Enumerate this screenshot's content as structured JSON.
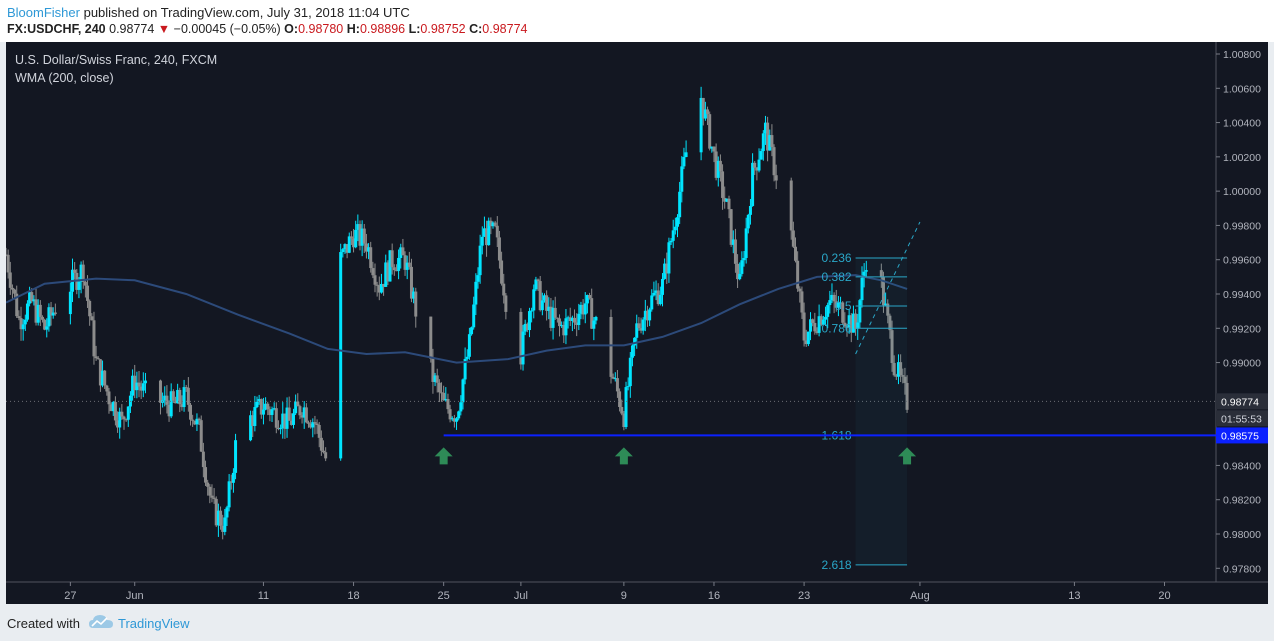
{
  "header": {
    "author": "BloomFisher",
    "published_text": "published on TradingView.com, July 31, 2018 11:04 UTC",
    "symbol": "FX:USDCHF, 240",
    "last": "0.98774",
    "change_arrow": "▼",
    "change": "−0.00045 (−0.05%)",
    "o_label": "O:",
    "o_value": "0.98780",
    "h_label": "H:",
    "h_value": "0.98896",
    "l_label": "L:",
    "l_value": "0.98752",
    "c_label": "C:",
    "c_value": "0.98774"
  },
  "legend": {
    "title": "U.S. Dollar/Swiss Franc, 240, FXCM",
    "indicator": "WMA (200, close)"
  },
  "footer": {
    "created_with": "Created with",
    "brand": "TradingView",
    "logo_icon": "tradingview-cloud-icon"
  },
  "colors": {
    "background": "#131722",
    "up_candle": "#00e5ff",
    "down_candle": "#8c8c8c",
    "wma": "#2c4a7a",
    "support_line": "#0b21ff",
    "fib": "#2aa7c8",
    "arrow": "#2e8b57"
  },
  "chart_data": {
    "type": "candlestick",
    "title": "U.S. Dollar/Swiss Franc, 240, FXCM",
    "ylim": [
      0.9772,
      1.0087
    ],
    "y_ticks": [
      "1.00800",
      "1.00600",
      "1.00400",
      "1.00200",
      "1.00000",
      "0.99800",
      "0.99600",
      "0.99400",
      "0.99200",
      "0.99000",
      "0.98400",
      "0.98200",
      "0.98000",
      "0.97800"
    ],
    "y_tick_values": [
      1.008,
      1.006,
      1.004,
      1.002,
      1.0,
      0.998,
      0.996,
      0.994,
      0.992,
      0.99,
      0.984,
      0.982,
      0.98,
      0.978
    ],
    "x_ticks": [
      "27",
      "Jun",
      "11",
      "18",
      "25",
      "Jul",
      "9",
      "16",
      "23",
      "Aug",
      "13",
      "20"
    ],
    "x_tick_dates": [
      "2018-05-27",
      "2018-06-01",
      "2018-06-11",
      "2018-06-18",
      "2018-06-25",
      "2018-07-01",
      "2018-07-09",
      "2018-07-16",
      "2018-07-23",
      "2018-08-01",
      "2018-08-13",
      "2018-08-20"
    ],
    "xlim": [
      "2018-05-22",
      "2018-08-24"
    ],
    "last_price": {
      "label": "0.98774",
      "value": 0.98774
    },
    "countdown": {
      "label": "01:55:53"
    },
    "support_level": {
      "label": "0.98575",
      "value": 0.98575,
      "start": "2018-06-25"
    },
    "fibonacci": {
      "start": "2018-07-27",
      "end": "2018-07-31",
      "levels": [
        {
          "label": "0.236",
          "value": 0.9961
        },
        {
          "label": "0.382",
          "value": 0.995
        },
        {
          "label": "0.5",
          "value": 0.9933
        },
        {
          "label": "0.786",
          "value": 0.992
        },
        {
          "label": "1.618",
          "value": 0.98575
        },
        {
          "label": "2.618",
          "value": 0.9782
        }
      ]
    },
    "arrows": [
      "2018-06-25",
      "2018-07-09",
      "2018-07-31"
    ],
    "wma_line": [
      [
        "2018-05-22",
        0.9935
      ],
      [
        "2018-05-25",
        0.9946
      ],
      [
        "2018-05-29",
        0.9949
      ],
      [
        "2018-06-01",
        0.9948
      ],
      [
        "2018-06-05",
        0.994
      ],
      [
        "2018-06-09",
        0.9928
      ],
      [
        "2018-06-13",
        0.9917
      ],
      [
        "2018-06-16",
        0.9908
      ],
      [
        "2018-06-19",
        0.9905
      ],
      [
        "2018-06-22",
        0.9906
      ],
      [
        "2018-06-26",
        0.99
      ],
      [
        "2018-06-30",
        0.9902
      ],
      [
        "2018-07-03",
        0.9907
      ],
      [
        "2018-07-06",
        0.991
      ],
      [
        "2018-07-09",
        0.991
      ],
      [
        "2018-07-12",
        0.9915
      ],
      [
        "2018-07-15",
        0.9923
      ],
      [
        "2018-07-18",
        0.9934
      ],
      [
        "2018-07-21",
        0.9943
      ],
      [
        "2018-07-24",
        0.995
      ],
      [
        "2018-07-27",
        0.9951
      ],
      [
        "2018-07-29",
        0.9948
      ],
      [
        "2018-07-31",
        0.9943
      ]
    ],
    "price_path": [
      [
        "2018-05-22",
        0.9963
      ],
      [
        "2018-05-23",
        0.9925
      ],
      [
        "2018-05-24",
        0.9935
      ],
      [
        "2018-05-25",
        0.992
      ],
      [
        "2018-05-26",
        0.9935
      ],
      [
        "2018-05-28",
        0.9955
      ],
      [
        "2018-05-29",
        0.99
      ],
      [
        "2018-05-30",
        0.988
      ],
      [
        "2018-05-31",
        0.9865
      ],
      [
        "2018-06-01",
        0.989
      ],
      [
        "2018-06-02",
        0.988
      ],
      [
        "2018-06-04",
        0.9875
      ],
      [
        "2018-06-05",
        0.988
      ],
      [
        "2018-06-06",
        0.986
      ],
      [
        "2018-06-07",
        0.9815
      ],
      [
        "2018-06-08",
        0.9805
      ],
      [
        "2018-06-09",
        0.986
      ],
      [
        "2018-06-11",
        0.9875
      ],
      [
        "2018-06-12",
        0.987
      ],
      [
        "2018-06-13",
        0.9865
      ],
      [
        "2018-06-14",
        0.9875
      ],
      [
        "2018-06-15",
        0.9865
      ],
      [
        "2018-06-16",
        0.984
      ],
      [
        "2018-06-17",
        0.996
      ],
      [
        "2018-06-18",
        0.9975
      ],
      [
        "2018-06-19",
        0.997
      ],
      [
        "2018-06-20",
        0.9945
      ],
      [
        "2018-06-21",
        0.996
      ],
      [
        "2018-06-22",
        0.996
      ],
      [
        "2018-06-23",
        0.9925
      ],
      [
        "2018-06-24",
        0.9895
      ],
      [
        "2018-06-25",
        0.9875
      ],
      [
        "2018-06-26",
        0.987
      ],
      [
        "2018-06-27",
        0.991
      ],
      [
        "2018-06-28",
        0.9975
      ],
      [
        "2018-06-29",
        0.9975
      ],
      [
        "2018-06-30",
        0.993
      ],
      [
        "2018-07-01",
        0.9905
      ],
      [
        "2018-07-02",
        0.9945
      ],
      [
        "2018-07-03",
        0.993
      ],
      [
        "2018-07-04",
        0.992
      ],
      [
        "2018-07-05",
        0.9925
      ],
      [
        "2018-07-06",
        0.9935
      ],
      [
        "2018-07-07",
        0.992
      ],
      [
        "2018-07-08",
        0.9895
      ],
      [
        "2018-07-09",
        0.987
      ],
      [
        "2018-07-10",
        0.992
      ],
      [
        "2018-07-11",
        0.9935
      ],
      [
        "2018-07-12",
        0.9945
      ],
      [
        "2018-07-13",
        0.9985
      ],
      [
        "2018-07-14",
        1.003
      ],
      [
        "2018-07-15",
        1.0055
      ],
      [
        "2018-07-16",
        1.002
      ],
      [
        "2018-07-17",
        0.999
      ],
      [
        "2018-07-18",
        0.9945
      ],
      [
        "2018-07-19",
        1.001
      ],
      [
        "2018-07-20",
        1.0035
      ],
      [
        "2018-07-21",
        1.0005
      ],
      [
        "2018-07-22",
        0.9975
      ],
      [
        "2018-07-23",
        0.9915
      ],
      [
        "2018-07-24",
        0.9925
      ],
      [
        "2018-07-25",
        0.9935
      ],
      [
        "2018-07-26",
        0.993
      ],
      [
        "2018-07-27",
        0.992
      ],
      [
        "2018-07-28",
        0.997
      ],
      [
        "2018-07-29",
        0.9945
      ],
      [
        "2018-07-30",
        0.99
      ],
      [
        "2018-07-31",
        0.98774
      ]
    ]
  }
}
